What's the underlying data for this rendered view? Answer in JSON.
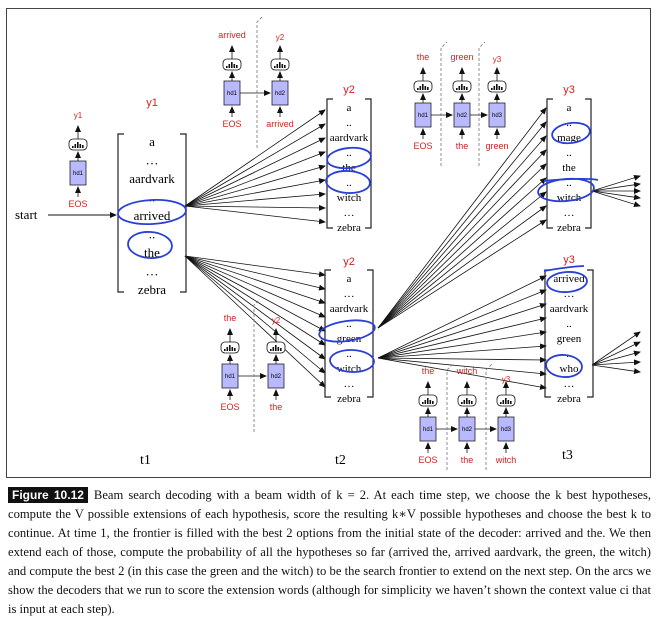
{
  "figure": {
    "start": "start",
    "time_steps": [
      "t1",
      "t2",
      "t3"
    ],
    "col1": {
      "label": "y1",
      "words": [
        "a",
        "…",
        "aardvark",
        "..",
        "arrived",
        "..",
        "the",
        "…",
        "zebra"
      ]
    },
    "col2a": {
      "label": "y2",
      "words": [
        "a",
        "..",
        "aardvark",
        "..",
        "the",
        "..",
        "witch",
        "…",
        "zebra"
      ]
    },
    "col2b": {
      "label": "y2",
      "words": [
        "a",
        "…",
        "aardvark",
        "..",
        "green",
        "..",
        "witch",
        "…",
        "zebra"
      ]
    },
    "col3a": {
      "label": "y3",
      "words": [
        "a",
        "..",
        "mage",
        "..",
        "the",
        "..",
        "witch",
        "…",
        "zebra"
      ]
    },
    "col3b": {
      "label": "y3",
      "words": [
        "arrived",
        "…",
        "aardvark",
        "..",
        "green",
        "..",
        "who",
        "…",
        "zebra"
      ]
    },
    "decoders": {
      "eos": "EOS",
      "h1": "hd1",
      "h2": "hd2",
      "h3": "hd3",
      "y1": "y1",
      "y2": "y2",
      "y3": "y3",
      "arrived": "arrived",
      "the": "the",
      "green": "green",
      "witch": "witch"
    }
  },
  "caption": {
    "label": "Figure 10.12",
    "text": "Beam search decoding with a beam width of k = 2. At each time step, we choose the k best hypotheses, compute the V possible extensions of each hypothesis, score the resulting k∗V possible hypotheses and choose the best k to continue. At time 1, the frontier is filled with the best 2 options from the initial state of the decoder: arrived and the. We then extend each of those, compute the probability of all the hypotheses so far (arrived the, arrived aardvark, the green, the witch) and compute the best 2 (in this case the green and the witch) to be the search frontier to extend on the next step. On the arcs we show the decoders that we run to score the extension words (although for simplicity we haven’t shown the context value ci that is input at each step)."
  }
}
